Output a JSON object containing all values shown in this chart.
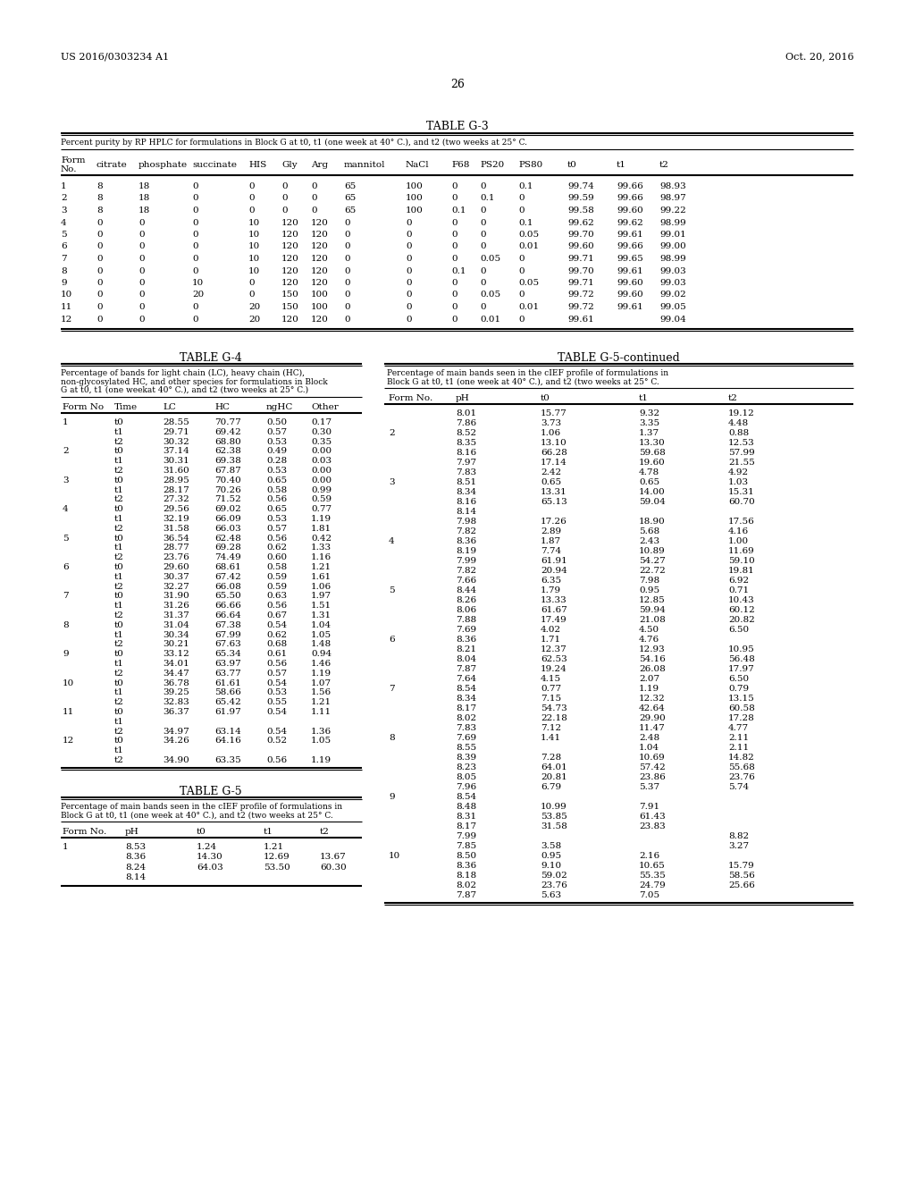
{
  "header_left": "US 2016/0303234 A1",
  "header_right": "Oct. 20, 2016",
  "page_number": "26",
  "table_g3_title": "TABLE G-3",
  "table_g3_caption": "Percent purity by RP HPLC for formulations in Block G at t0, t1 (one week at 40° C.), and t2 (two weeks at 25° C.",
  "table_g3_col1": [
    "Form",
    "No."
  ],
  "table_g3_cols": [
    "citrate",
    "phosphate",
    "succinate",
    "HIS",
    "Gly",
    "Arg",
    "mannitol",
    "NaCl",
    "F68",
    "PS20",
    "PS80",
    "t0",
    "t1",
    "t2"
  ],
  "table_g3_data": [
    [
      "1",
      "8",
      "18",
      "0",
      "0",
      "0",
      "0",
      "65",
      "100",
      "0",
      "0",
      "0.1",
      "99.74",
      "99.66",
      "98.93"
    ],
    [
      "2",
      "8",
      "18",
      "0",
      "0",
      "0",
      "0",
      "65",
      "100",
      "0",
      "0.1",
      "0",
      "99.59",
      "99.66",
      "98.97"
    ],
    [
      "3",
      "8",
      "18",
      "0",
      "0",
      "0",
      "0",
      "65",
      "100",
      "0.1",
      "0",
      "0",
      "99.58",
      "99.60",
      "99.22"
    ],
    [
      "4",
      "0",
      "0",
      "0",
      "10",
      "120",
      "120",
      "0",
      "0",
      "0",
      "0",
      "0.1",
      "99.62",
      "99.62",
      "98.99"
    ],
    [
      "5",
      "0",
      "0",
      "0",
      "10",
      "120",
      "120",
      "0",
      "0",
      "0",
      "0",
      "0.05",
      "99.70",
      "99.61",
      "99.01"
    ],
    [
      "6",
      "0",
      "0",
      "0",
      "10",
      "120",
      "120",
      "0",
      "0",
      "0",
      "0",
      "0.01",
      "99.60",
      "99.66",
      "99.00"
    ],
    [
      "7",
      "0",
      "0",
      "0",
      "10",
      "120",
      "120",
      "0",
      "0",
      "0",
      "0.05",
      "0",
      "99.71",
      "99.65",
      "98.99"
    ],
    [
      "8",
      "0",
      "0",
      "0",
      "10",
      "120",
      "120",
      "0",
      "0",
      "0.1",
      "0",
      "0",
      "99.70",
      "99.61",
      "99.03"
    ],
    [
      "9",
      "0",
      "0",
      "10",
      "0",
      "120",
      "120",
      "0",
      "0",
      "0",
      "0",
      "0.05",
      "99.71",
      "99.60",
      "99.03"
    ],
    [
      "10",
      "0",
      "0",
      "20",
      "0",
      "150",
      "100",
      "0",
      "0",
      "0",
      "0.05",
      "0",
      "99.72",
      "99.60",
      "99.02"
    ],
    [
      "11",
      "0",
      "0",
      "0",
      "20",
      "150",
      "100",
      "0",
      "0",
      "0",
      "0",
      "0.01",
      "99.72",
      "99.61",
      "99.05"
    ],
    [
      "12",
      "0",
      "0",
      "0",
      "20",
      "120",
      "120",
      "0",
      "0",
      "0",
      "0.01",
      "0",
      "99.61",
      "",
      "99.04"
    ]
  ],
  "table_g4_title": "TABLE G-4",
  "table_g4_caption_lines": [
    "Percentage of bands for light chain (LC), heavy chain (HC),",
    "non-glycosylated HC, and other species for formulations in Block",
    "G at t0, t1 (one weekat 40° C.), and t2 (two weeks at 25° C.)"
  ],
  "table_g4_headers": [
    "Form No",
    "Time",
    "LC",
    "HC",
    "ngHC",
    "Other"
  ],
  "table_g4_data": [
    [
      "1",
      "t0",
      "28.55",
      "70.77",
      "0.50",
      "0.17"
    ],
    [
      "",
      "t1",
      "29.71",
      "69.42",
      "0.57",
      "0.30"
    ],
    [
      "",
      "t2",
      "30.32",
      "68.80",
      "0.53",
      "0.35"
    ],
    [
      "2",
      "t0",
      "37.14",
      "62.38",
      "0.49",
      "0.00"
    ],
    [
      "",
      "t1",
      "30.31",
      "69.38",
      "0.28",
      "0.03"
    ],
    [
      "",
      "t2",
      "31.60",
      "67.87",
      "0.53",
      "0.00"
    ],
    [
      "3",
      "t0",
      "28.95",
      "70.40",
      "0.65",
      "0.00"
    ],
    [
      "",
      "t1",
      "28.17",
      "70.26",
      "0.58",
      "0.99"
    ],
    [
      "",
      "t2",
      "27.32",
      "71.52",
      "0.56",
      "0.59"
    ],
    [
      "4",
      "t0",
      "29.56",
      "69.02",
      "0.65",
      "0.77"
    ],
    [
      "",
      "t1",
      "32.19",
      "66.09",
      "0.53",
      "1.19"
    ],
    [
      "",
      "t2",
      "31.58",
      "66.03",
      "0.57",
      "1.81"
    ],
    [
      "5",
      "t0",
      "36.54",
      "62.48",
      "0.56",
      "0.42"
    ],
    [
      "",
      "t1",
      "28.77",
      "69.28",
      "0.62",
      "1.33"
    ],
    [
      "",
      "t2",
      "23.76",
      "74.49",
      "0.60",
      "1.16"
    ],
    [
      "6",
      "t0",
      "29.60",
      "68.61",
      "0.58",
      "1.21"
    ],
    [
      "",
      "t1",
      "30.37",
      "67.42",
      "0.59",
      "1.61"
    ],
    [
      "",
      "t2",
      "32.27",
      "66.08",
      "0.59",
      "1.06"
    ],
    [
      "7",
      "t0",
      "31.90",
      "65.50",
      "0.63",
      "1.97"
    ],
    [
      "",
      "t1",
      "31.26",
      "66.66",
      "0.56",
      "1.51"
    ],
    [
      "",
      "t2",
      "31.37",
      "66.64",
      "0.67",
      "1.31"
    ],
    [
      "8",
      "t0",
      "31.04",
      "67.38",
      "0.54",
      "1.04"
    ],
    [
      "",
      "t1",
      "30.34",
      "67.99",
      "0.62",
      "1.05"
    ],
    [
      "",
      "t2",
      "30.21",
      "67.63",
      "0.68",
      "1.48"
    ],
    [
      "9",
      "t0",
      "33.12",
      "65.34",
      "0.61",
      "0.94"
    ],
    [
      "",
      "t1",
      "34.01",
      "63.97",
      "0.56",
      "1.46"
    ],
    [
      "",
      "t2",
      "34.47",
      "63.77",
      "0.57",
      "1.19"
    ],
    [
      "10",
      "t0",
      "36.78",
      "61.61",
      "0.54",
      "1.07"
    ],
    [
      "",
      "t1",
      "39.25",
      "58.66",
      "0.53",
      "1.56"
    ],
    [
      "",
      "t2",
      "32.83",
      "65.42",
      "0.55",
      "1.21"
    ],
    [
      "11",
      "t0",
      "36.37",
      "61.97",
      "0.54",
      "1.11"
    ],
    [
      "",
      "t1",
      "",
      "",
      "",
      ""
    ],
    [
      "",
      "t2",
      "34.97",
      "63.14",
      "0.54",
      "1.36"
    ],
    [
      "12",
      "t0",
      "34.26",
      "64.16",
      "0.52",
      "1.05"
    ],
    [
      "",
      "t1",
      "",
      "",
      "",
      ""
    ],
    [
      "",
      "t2",
      "34.90",
      "63.35",
      "0.56",
      "1.19"
    ]
  ],
  "table_g5_title": "TABLE G-5",
  "table_g5_caption_lines": [
    "Percentage of main bands seen in the cIEF profile of formulations in",
    "Block G at t0, t1 (one week at 40° C.), and t2 (two weeks at 25° C."
  ],
  "table_g5_headers": [
    "Form No.",
    "pH",
    "t0",
    "t1",
    "t2"
  ],
  "table_g5_data": [
    [
      "1",
      "8.53",
      "1.24",
      "1.21",
      ""
    ],
    [
      "",
      "8.36",
      "14.30",
      "12.69",
      "13.67"
    ],
    [
      "",
      "8.24",
      "64.03",
      "53.50",
      "60.30"
    ],
    [
      "",
      "8.14",
      "",
      "",
      ""
    ]
  ],
  "table_g5cont_title": "TABLE G-5-continued",
  "table_g5cont_caption_lines": [
    "Percentage of main bands seen in the cIEF profile of formulations in",
    "Block G at t0, t1 (one week at 40° C.), and t2 (two weeks at 25° C."
  ],
  "table_g5cont_headers": [
    "Form No.",
    "pH",
    "t0",
    "t1",
    "t2"
  ],
  "table_g5cont_data": [
    [
      "",
      "8.01",
      "15.77",
      "9.32",
      "19.12"
    ],
    [
      "",
      "7.86",
      "3.73",
      "3.35",
      "4.48"
    ],
    [
      "2",
      "8.52",
      "1.06",
      "1.37",
      "0.88"
    ],
    [
      "",
      "8.35",
      "13.10",
      "13.30",
      "12.53"
    ],
    [
      "",
      "8.16",
      "66.28",
      "59.68",
      "57.99"
    ],
    [
      "",
      "7.97",
      "17.14",
      "19.60",
      "21.55"
    ],
    [
      "",
      "7.83",
      "2.42",
      "4.78",
      "4.92"
    ],
    [
      "3",
      "8.51",
      "0.65",
      "0.65",
      "1.03"
    ],
    [
      "",
      "8.34",
      "13.31",
      "14.00",
      "15.31"
    ],
    [
      "",
      "8.16",
      "65.13",
      "59.04",
      "60.70"
    ],
    [
      "",
      "8.14",
      "",
      "",
      ""
    ],
    [
      "",
      "7.98",
      "17.26",
      "18.90",
      "17.56"
    ],
    [
      "",
      "7.82",
      "2.89",
      "5.68",
      "4.16"
    ],
    [
      "4",
      "8.36",
      "1.87",
      "2.43",
      "1.00"
    ],
    [
      "",
      "8.19",
      "7.74",
      "10.89",
      "11.69"
    ],
    [
      "",
      "7.99",
      "61.91",
      "54.27",
      "59.10"
    ],
    [
      "",
      "7.82",
      "20.94",
      "22.72",
      "19.81"
    ],
    [
      "",
      "7.66",
      "6.35",
      "7.98",
      "6.92"
    ],
    [
      "5",
      "8.44",
      "1.79",
      "0.95",
      "0.71"
    ],
    [
      "",
      "8.26",
      "13.33",
      "12.85",
      "10.43"
    ],
    [
      "",
      "8.06",
      "61.67",
      "59.94",
      "60.12"
    ],
    [
      "",
      "7.88",
      "17.49",
      "21.08",
      "20.82"
    ],
    [
      "",
      "7.69",
      "4.02",
      "4.50",
      "6.50"
    ],
    [
      "6",
      "8.36",
      "1.71",
      "4.76",
      ""
    ],
    [
      "",
      "8.21",
      "12.37",
      "12.93",
      "10.95"
    ],
    [
      "",
      "8.04",
      "62.53",
      "54.16",
      "56.48"
    ],
    [
      "",
      "7.87",
      "19.24",
      "26.08",
      "17.97"
    ],
    [
      "",
      "7.64",
      "4.15",
      "2.07",
      "6.50"
    ],
    [
      "7",
      "8.54",
      "0.77",
      "1.19",
      "0.79"
    ],
    [
      "",
      "8.34",
      "7.15",
      "12.32",
      "13.15"
    ],
    [
      "",
      "8.17",
      "54.73",
      "42.64",
      "60.58"
    ],
    [
      "",
      "8.02",
      "22.18",
      "29.90",
      "17.28"
    ],
    [
      "",
      "7.83",
      "7.12",
      "11.47",
      "4.77"
    ],
    [
      "8",
      "7.69",
      "1.41",
      "2.48",
      "2.11"
    ],
    [
      "",
      "8.55",
      "",
      "1.04",
      "2.11"
    ],
    [
      "",
      "8.39",
      "7.28",
      "10.69",
      "14.82"
    ],
    [
      "",
      "8.23",
      "64.01",
      "57.42",
      "55.68"
    ],
    [
      "",
      "8.05",
      "20.81",
      "23.86",
      "23.76"
    ],
    [
      "",
      "7.96",
      "6.79",
      "5.37",
      "5.74"
    ],
    [
      "9",
      "8.54",
      "",
      "",
      ""
    ],
    [
      "",
      "8.48",
      "10.99",
      "7.91",
      ""
    ],
    [
      "",
      "8.31",
      "53.85",
      "61.43",
      ""
    ],
    [
      "",
      "8.17",
      "31.58",
      "23.83",
      ""
    ],
    [
      "",
      "7.99",
      "",
      "",
      "8.82"
    ],
    [
      "",
      "7.85",
      "3.58",
      "",
      "3.27"
    ],
    [
      "10",
      "8.50",
      "0.95",
      "2.16",
      ""
    ],
    [
      "",
      "8.36",
      "9.10",
      "10.65",
      "15.79"
    ],
    [
      "",
      "8.18",
      "59.02",
      "55.35",
      "58.56"
    ],
    [
      "",
      "8.02",
      "23.76",
      "24.79",
      "25.66"
    ],
    [
      "",
      "7.87",
      "5.63",
      "7.05",
      ""
    ]
  ]
}
